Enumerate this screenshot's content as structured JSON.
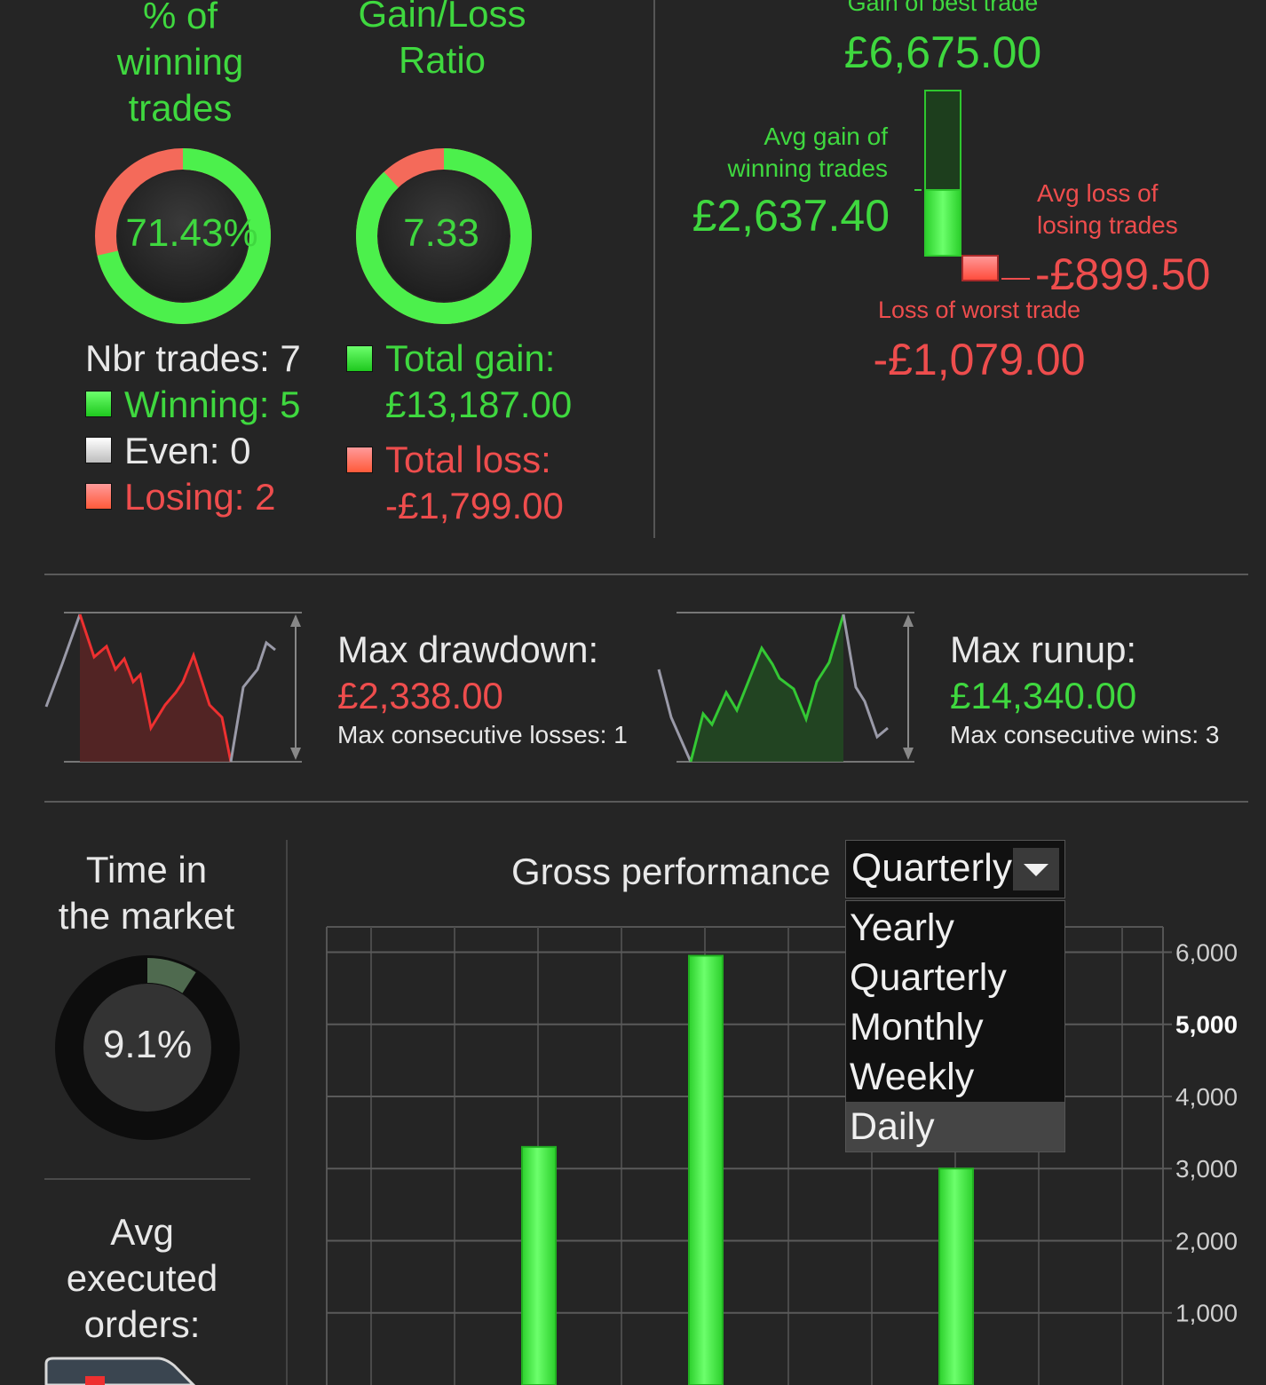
{
  "colors": {
    "background": "#252525",
    "gain": "#3fd83f",
    "loss": "#ee4d4d",
    "text": "#e8e8e8"
  },
  "winning_pct": {
    "title_lines": [
      "% of",
      "winning",
      "trades"
    ],
    "value_text": "71.43%",
    "fraction": 0.7143
  },
  "gain_loss": {
    "title_lines": [
      "Gain/Loss",
      "Ratio"
    ],
    "value_text": "7.33",
    "gain_fraction": 0.88
  },
  "trades": {
    "nbr_label": "Nbr trades: 7",
    "winning_label": "Winning: 5",
    "even_label": "Even: 0",
    "losing_label": "Losing: 2"
  },
  "totals": {
    "gain_label": "Total gain:",
    "gain_value": "£13,187.00",
    "loss_label": "Total loss:",
    "loss_value": "-£1,799.00"
  },
  "trade_stats": {
    "best_label": "Gain of best trade",
    "best_value": "£6,675.00",
    "avg_gain_label_1": "Avg gain of",
    "avg_gain_label_2": "winning trades",
    "avg_gain_value": "£2,637.40",
    "avg_loss_label_1": "Avg loss of",
    "avg_loss_label_2": "losing trades",
    "avg_loss_value": "-£899.50",
    "worst_label": "Loss of worst trade",
    "worst_value": "-£1,079.00"
  },
  "drawdown": {
    "label": "Max drawdown:",
    "value": "£2,338.00",
    "sub": "Max consecutive losses: 1"
  },
  "runup": {
    "label": "Max runup:",
    "value": "£14,340.00",
    "sub": "Max consecutive wins: 3"
  },
  "time_in_market": {
    "title_lines": [
      "Time in",
      "the market"
    ],
    "value_text": "9.1%",
    "fraction": 0.091
  },
  "avg_orders": {
    "title_lines": [
      "Avg",
      "executed",
      "orders:"
    ]
  },
  "performance": {
    "title": "Gross performance",
    "period_selected": "Quarterly",
    "period_options": [
      "Yearly",
      "Quarterly",
      "Monthly",
      "Weekly",
      "Daily"
    ],
    "highlighted_option": "Daily"
  },
  "chart_data": {
    "type": "bar",
    "title": "Gross performance",
    "y_ticks": [
      "6,000",
      "5,000",
      "4,000",
      "3,000",
      "2,000",
      "1,000"
    ],
    "ylim": [
      0,
      6350
    ],
    "grid": true,
    "series": [
      {
        "values": [
          3300,
          5950,
          3000
        ]
      }
    ]
  }
}
